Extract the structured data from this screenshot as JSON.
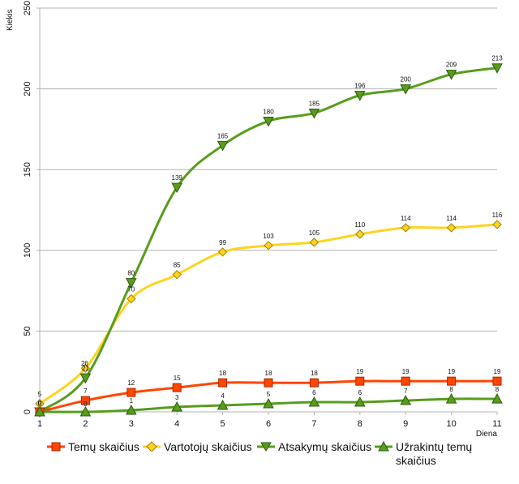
{
  "chart_data": {
    "type": "line",
    "title": "",
    "xlabel": "Diena",
    "ylabel": "Kiekis",
    "x": [
      1,
      2,
      3,
      4,
      5,
      6,
      7,
      8,
      9,
      10,
      11
    ],
    "xlim": [
      1,
      11
    ],
    "ylim": [
      0,
      250
    ],
    "yticks": [
      0,
      50,
      100,
      150,
      200,
      250
    ],
    "grid": "horizontal",
    "legend_position": "bottom",
    "series": [
      {
        "name": "Temų skaičius",
        "color": "#ff4500",
        "marker_color": "#ff4500",
        "marker": "square",
        "values": [
          0,
          7,
          12,
          15,
          18,
          18,
          18,
          19,
          19,
          19,
          19
        ],
        "labels": [
          "0",
          "7",
          "12",
          "15",
          "18",
          "18",
          "18",
          "19",
          "19",
          "19",
          "19"
        ]
      },
      {
        "name": "Vartotojų skaičius",
        "color": "#ffd320",
        "marker_color": "#ffd320",
        "marker": "diamond",
        "values": [
          5,
          27,
          70,
          85,
          99,
          103,
          105,
          110,
          114,
          114,
          116
        ],
        "labels": [
          "5",
          "",
          "70",
          "85",
          "99",
          "103",
          "105",
          "110",
          "114",
          "114",
          "116"
        ]
      },
      {
        "name": "Atsakymų skaičius",
        "color": "#579d1c",
        "marker_color": "#579d1c",
        "marker": "triangle-down",
        "values": [
          0,
          21,
          80,
          139,
          165,
          180,
          185,
          196,
          200,
          209,
          213
        ],
        "labels": [
          "",
          "21",
          "80",
          "139",
          "165",
          "180",
          "185",
          "196",
          "200",
          "209",
          "213"
        ]
      },
      {
        "name": "Užrakintų temų skaičius",
        "color": "#579d1c",
        "marker_color": "#579d1c",
        "marker": "triangle-up",
        "values": [
          0,
          0,
          1,
          3,
          4,
          5,
          6,
          6,
          7,
          8,
          8
        ],
        "labels": [
          "0",
          "0",
          "1",
          "3",
          "4",
          "5",
          "6",
          "6",
          "7",
          "8",
          "8"
        ]
      }
    ],
    "extra_labels": [
      "26"
    ]
  },
  "legend": [
    {
      "lines": [
        "Temų skaičius"
      ]
    },
    {
      "lines": [
        "Vartotojų skaičius"
      ]
    },
    {
      "lines": [
        "Atsakymų skaičius"
      ]
    },
    {
      "lines": [
        "Užrakintų temų",
        "skaičius"
      ]
    }
  ]
}
